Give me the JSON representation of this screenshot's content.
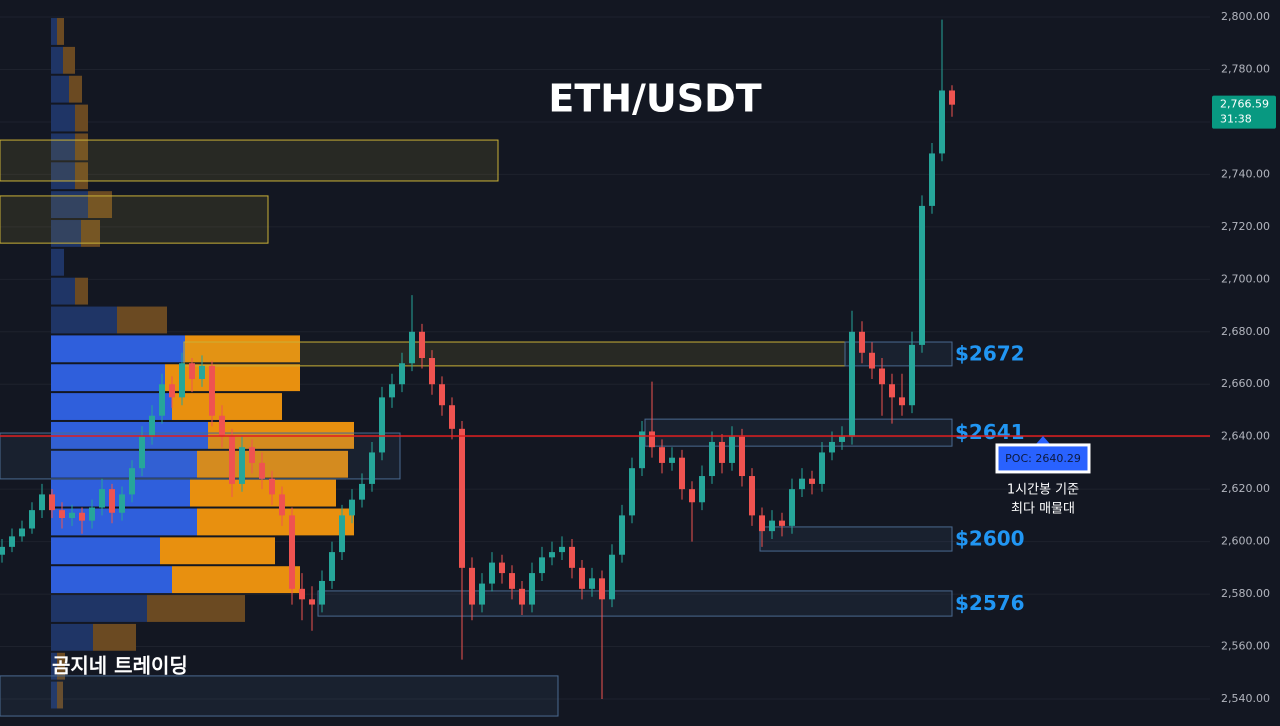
{
  "chart_data": {
    "type": "candlestick",
    "title": "ETH/USDT",
    "watermark": "곰지네 트레이딩",
    "ylim": [
      2529.7,
      2806.5
    ],
    "xlim": [
      -0.2,
      120.8
    ],
    "grid": true,
    "up_color": "#26a69a",
    "down_color": "#ef5350",
    "yticks": [
      {
        "value": 2540,
        "label": "2,540.00"
      },
      {
        "value": 2560,
        "label": "2,560.00"
      },
      {
        "value": 2580,
        "label": "2,580.00"
      },
      {
        "value": 2600,
        "label": "2,600.00"
      },
      {
        "value": 2620,
        "label": "2,620.00"
      },
      {
        "value": 2640,
        "label": "2,640.00"
      },
      {
        "value": 2660,
        "label": "2,660.00"
      },
      {
        "value": 2680,
        "label": "2,680.00"
      },
      {
        "value": 2700,
        "label": "2,700.00"
      },
      {
        "value": 2720,
        "label": "2,720.00"
      },
      {
        "value": 2740,
        "label": "2,740.00"
      },
      {
        "value": 2760,
        "label": "2,760.00"
      },
      {
        "value": 2780,
        "label": "2,780.00"
      },
      {
        "value": 2800,
        "label": "2,800.00"
      }
    ],
    "candles": [
      [
        2595,
        2601,
        2592,
        2598
      ],
      [
        2598,
        2605,
        2596,
        2602
      ],
      [
        2602,
        2608,
        2600,
        2605
      ],
      [
        2605,
        2615,
        2603,
        2612
      ],
      [
        2612,
        2622,
        2609,
        2618
      ],
      [
        2618,
        2620,
        2609,
        2612
      ],
      [
        2612,
        2615,
        2605,
        2609
      ],
      [
        2609,
        2614,
        2606,
        2611
      ],
      [
        2611,
        2613,
        2603,
        2608
      ],
      [
        2608,
        2616,
        2605,
        2613
      ],
      [
        2613,
        2624,
        2610,
        2620
      ],
      [
        2620,
        2622,
        2607,
        2611
      ],
      [
        2611,
        2621,
        2608,
        2618
      ],
      [
        2618,
        2631,
        2615,
        2628
      ],
      [
        2628,
        2644,
        2625,
        2640
      ],
      [
        2640,
        2652,
        2637,
        2648
      ],
      [
        2648,
        2664,
        2645,
        2660
      ],
      [
        2660,
        2663,
        2651,
        2655
      ],
      [
        2655,
        2672,
        2652,
        2668
      ],
      [
        2668,
        2670,
        2657,
        2662
      ],
      [
        2662,
        2671,
        2659,
        2667
      ],
      [
        2667,
        2669,
        2644,
        2648
      ],
      [
        2648,
        2652,
        2636,
        2640
      ],
      [
        2640,
        2643,
        2617,
        2622
      ],
      [
        2622,
        2640,
        2619,
        2636
      ],
      [
        2636,
        2639,
        2626,
        2630
      ],
      [
        2630,
        2634,
        2620,
        2624
      ],
      [
        2624,
        2627,
        2614,
        2618
      ],
      [
        2618,
        2621,
        2606,
        2610
      ],
      [
        2610,
        2613,
        2576,
        2582
      ],
      [
        2582,
        2588,
        2570,
        2578
      ],
      [
        2578,
        2583,
        2566,
        2576
      ],
      [
        2576,
        2589,
        2573,
        2585
      ],
      [
        2585,
        2600,
        2582,
        2596
      ],
      [
        2596,
        2614,
        2593,
        2610
      ],
      [
        2610,
        2620,
        2607,
        2616
      ],
      [
        2616,
        2626,
        2613,
        2622
      ],
      [
        2622,
        2638,
        2619,
        2634
      ],
      [
        2634,
        2659,
        2631,
        2655
      ],
      [
        2655,
        2664,
        2651,
        2660
      ],
      [
        2660,
        2672,
        2657,
        2668
      ],
      [
        2668,
        2694,
        2665,
        2680
      ],
      [
        2680,
        2683,
        2666,
        2670
      ],
      [
        2670,
        2673,
        2656,
        2660
      ],
      [
        2660,
        2663,
        2648,
        2652
      ],
      [
        2652,
        2655,
        2639,
        2643
      ],
      [
        2643,
        2646,
        2555,
        2590
      ],
      [
        2590,
        2594,
        2570,
        2576
      ],
      [
        2576,
        2588,
        2573,
        2584
      ],
      [
        2584,
        2596,
        2581,
        2592
      ],
      [
        2592,
        2595,
        2584,
        2588
      ],
      [
        2588,
        2591,
        2578,
        2582
      ],
      [
        2582,
        2585,
        2572,
        2576
      ],
      [
        2576,
        2592,
        2573,
        2588
      ],
      [
        2588,
        2598,
        2585,
        2594
      ],
      [
        2594,
        2600,
        2591,
        2596
      ],
      [
        2596,
        2602,
        2593,
        2598
      ],
      [
        2598,
        2601,
        2586,
        2590
      ],
      [
        2590,
        2593,
        2578,
        2582
      ],
      [
        2582,
        2590,
        2579,
        2586
      ],
      [
        2586,
        2589,
        2540,
        2578
      ],
      [
        2578,
        2599,
        2575,
        2595
      ],
      [
        2595,
        2614,
        2592,
        2610
      ],
      [
        2610,
        2632,
        2607,
        2628
      ],
      [
        2628,
        2646,
        2625,
        2642
      ],
      [
        2642,
        2661,
        2632,
        2636
      ],
      [
        2636,
        2639,
        2626,
        2630
      ],
      [
        2630,
        2636,
        2627,
        2632
      ],
      [
        2632,
        2635,
        2616,
        2620
      ],
      [
        2620,
        2623,
        2600,
        2615
      ],
      [
        2615,
        2629,
        2612,
        2625
      ],
      [
        2625,
        2642,
        2622,
        2638
      ],
      [
        2638,
        2641,
        2626,
        2630
      ],
      [
        2630,
        2644,
        2627,
        2640
      ],
      [
        2640,
        2643,
        2621,
        2625
      ],
      [
        2625,
        2628,
        2606,
        2610
      ],
      [
        2610,
        2613,
        2598,
        2604
      ],
      [
        2604,
        2612,
        2601,
        2608
      ],
      [
        2608,
        2611,
        2602,
        2606
      ],
      [
        2606,
        2624,
        2603,
        2620
      ],
      [
        2620,
        2628,
        2617,
        2624
      ],
      [
        2624,
        2627,
        2618,
        2622
      ],
      [
        2622,
        2638,
        2619,
        2634
      ],
      [
        2634,
        2642,
        2631,
        2638
      ],
      [
        2638,
        2644,
        2635,
        2640
      ],
      [
        2640,
        2688,
        2637,
        2680
      ],
      [
        2680,
        2684,
        2668,
        2672
      ],
      [
        2672,
        2676,
        2662,
        2666
      ],
      [
        2666,
        2670,
        2648,
        2660
      ],
      [
        2660,
        2664,
        2645,
        2655
      ],
      [
        2655,
        2664,
        2648,
        2652
      ],
      [
        2652,
        2680,
        2649,
        2675
      ],
      [
        2675,
        2732,
        2672,
        2728
      ],
      [
        2728,
        2752,
        2725,
        2748
      ],
      [
        2748,
        2799,
        2745,
        2772
      ],
      [
        2772,
        2774,
        2762,
        2766.59
      ]
    ],
    "volume_profile": {
      "bins": [
        2536,
        2547,
        2558,
        2569,
        2580,
        2591,
        2602,
        2613,
        2624,
        2635,
        2646,
        2657,
        2668,
        2679,
        2690,
        2701,
        2712,
        2723,
        2734,
        2745,
        2756,
        2767,
        2778,
        2789,
        2800
      ],
      "buy": [
        6,
        6,
        42,
        96,
        121,
        109,
        146,
        139,
        146,
        157,
        121,
        114,
        134,
        66,
        24,
        13,
        30,
        37,
        24,
        24,
        24,
        18,
        12,
        6
      ],
      "sell": [
        6,
        8,
        43,
        98,
        128,
        115,
        157,
        146,
        151,
        146,
        110,
        135,
        115,
        50,
        13,
        0,
        19,
        24,
        13,
        13,
        13,
        13,
        12,
        7
      ],
      "xlim": [
        0,
        1210
      ],
      "value_area": [
        2580,
        2679
      ],
      "buy_color": "#2f5fdc",
      "sell_color": "#e8900f",
      "buy_dim_color": "#1f3566",
      "sell_dim_color": "#6b4a22"
    },
    "zones": [
      {
        "top": 2753.1,
        "bottom": 2737.5,
        "from": -0.2,
        "to": 49.6,
        "color": "#c9b037"
      },
      {
        "top": 2731.8,
        "bottom": 2713.8,
        "from": -0.2,
        "to": 26.6,
        "color": "#c9b037"
      },
      {
        "top": 2676.1,
        "bottom": 2667,
        "from": 18.2,
        "to": 84.3,
        "color": "#c9b037"
      },
      {
        "top": 2641.4,
        "bottom": 2623.9,
        "from": -0.2,
        "to": 39.8,
        "color": "#4a6a90"
      },
      {
        "top": 2676.1,
        "bottom": 2667,
        "from": 84.3,
        "to": 95,
        "color": "#4a6a90",
        "label": "$2672"
      },
      {
        "top": 2646.7,
        "bottom": 2636.4,
        "from": 64.3,
        "to": 95,
        "color": "#4a6a90",
        "label": "$2641"
      },
      {
        "top": 2605.6,
        "bottom": 2596.4,
        "from": 75.8,
        "to": 95,
        "color": "#4a6a90",
        "label": "$2600"
      },
      {
        "top": 2581.2,
        "bottom": 2571.6,
        "from": 31.6,
        "to": 95,
        "color": "#4a6a90",
        "label": "$2576"
      },
      {
        "top": 2548.8,
        "bottom": 2533.5,
        "from": -0.2,
        "to": 55.6,
        "color": "#4a6a90"
      }
    ],
    "poc": {
      "value": 2640.29,
      "label": "POC: 2640.29",
      "note": [
        "1시간봉 기준",
        "최다 매물대"
      ],
      "color": "#e01e1e"
    },
    "last_price": {
      "value": 2766.59,
      "label": "2,766.59",
      "countdown": "31:38",
      "color": "#089981"
    }
  }
}
